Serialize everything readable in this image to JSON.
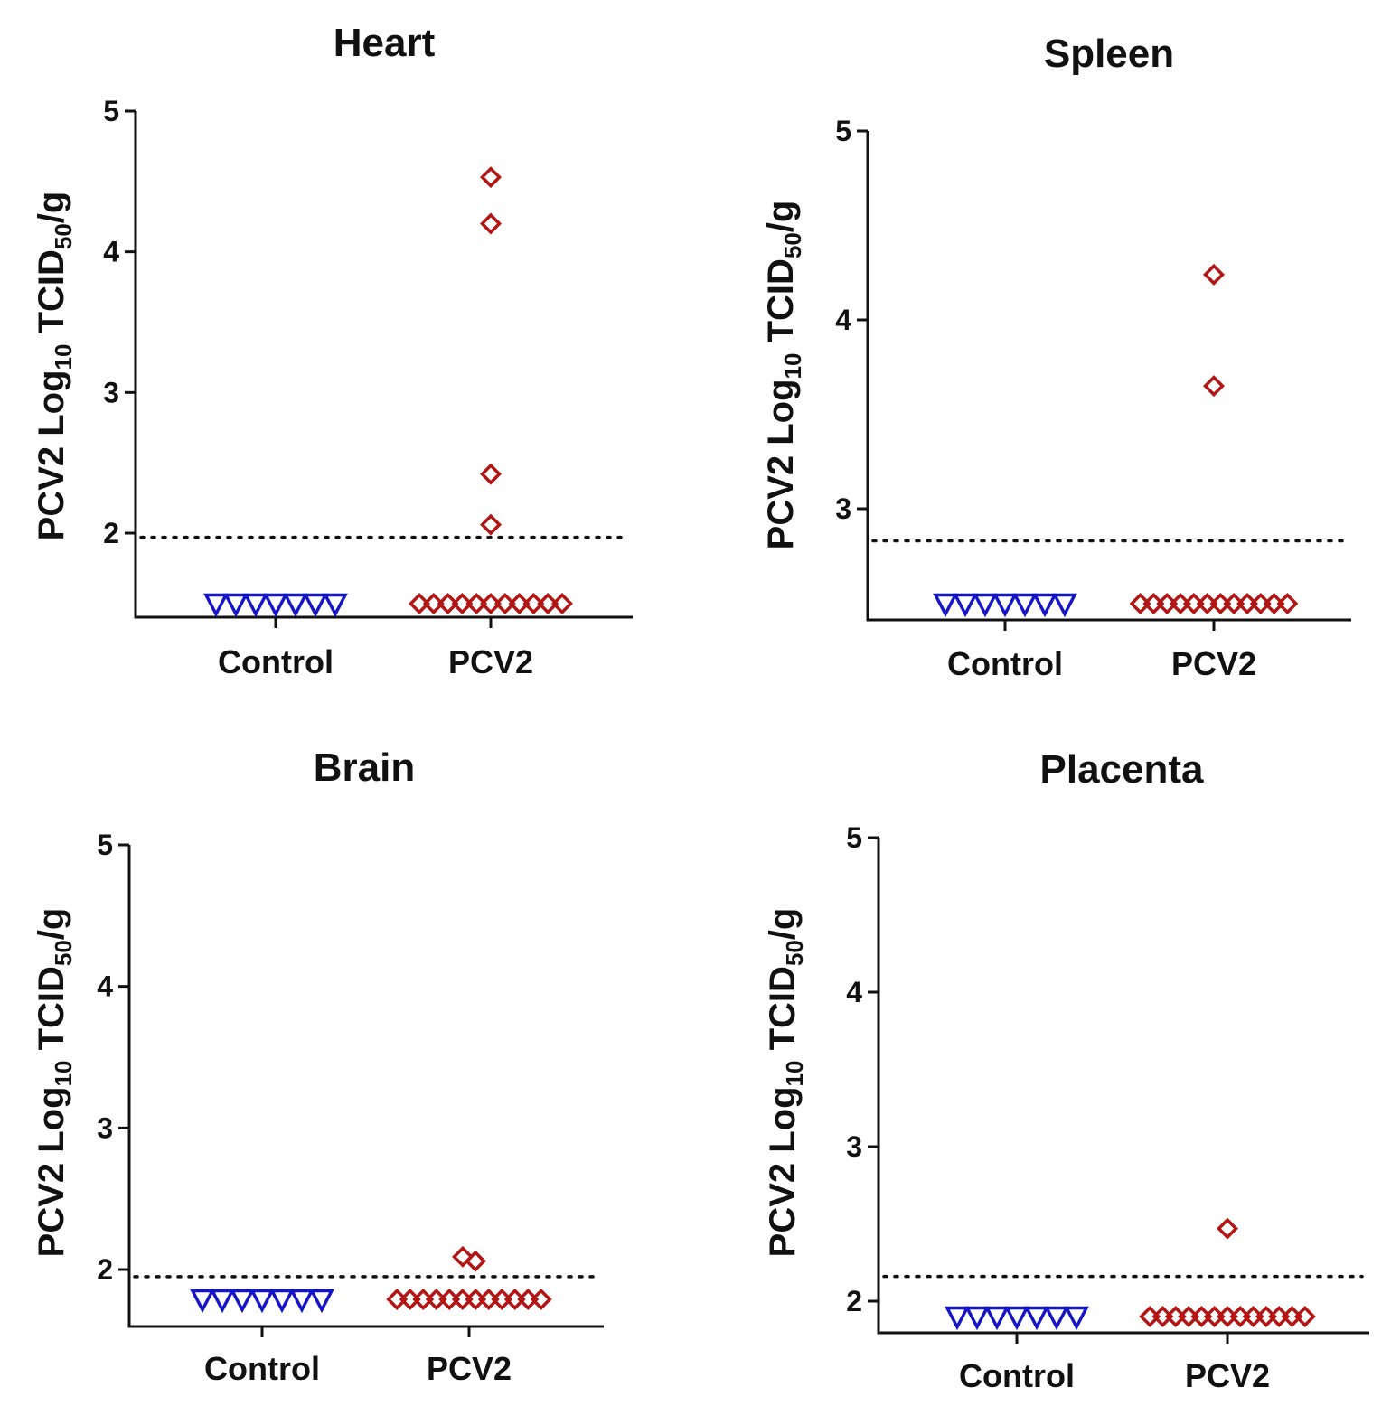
{
  "chart_data": [
    {
      "type": "scatter",
      "title": "Heart",
      "ylabel": {
        "prefix": "PCV2  Log",
        "sub1": "10",
        "mid": " TCID",
        "sub2": "50",
        "suffix": "/g"
      },
      "categories": [
        "Control",
        "PCV2"
      ],
      "ylim": [
        1.4,
        5
      ],
      "yticks": [
        "2",
        "3",
        "4",
        "5"
      ],
      "detection_limit": 1.97,
      "series": [
        {
          "name": "Control",
          "marker": "triangle-down",
          "color": "#1515c8",
          "values": [
            1.5,
            1.5,
            1.5,
            1.5,
            1.5,
            1.5,
            1.5
          ]
        },
        {
          "name": "PCV2",
          "marker": "diamond",
          "color": "#b31414",
          "values": [
            1.5,
            1.5,
            1.5,
            1.5,
            1.5,
            1.5,
            1.5,
            1.5,
            1.5,
            1.5,
            1.5,
            2.06,
            2.42,
            4.2,
            4.53
          ]
        }
      ]
    },
    {
      "type": "scatter",
      "title": "Spleen",
      "ylabel": {
        "prefix": "PCV2  Log",
        "sub1": "10",
        "mid": " TCID",
        "sub2": "50",
        "suffix": "/g"
      },
      "categories": [
        "Control",
        "PCV2"
      ],
      "ylim": [
        2.4,
        5
      ],
      "yticks": [
        "3",
        "4",
        "5"
      ],
      "detection_limit": 2.83,
      "series": [
        {
          "name": "Control",
          "marker": "triangle-down",
          "color": "#1515c8",
          "values": [
            2.5,
            2.5,
            2.5,
            2.5,
            2.5,
            2.5,
            2.5
          ]
        },
        {
          "name": "PCV2",
          "marker": "diamond",
          "color": "#b31414",
          "values": [
            2.5,
            2.5,
            2.5,
            2.5,
            2.5,
            2.5,
            2.5,
            2.5,
            2.5,
            2.5,
            2.5,
            2.5,
            3.65,
            4.24
          ]
        }
      ]
    },
    {
      "type": "scatter",
      "title": "Brain",
      "ylabel": {
        "prefix": "PCV2  Log",
        "sub1": "10",
        "mid": " TCID",
        "sub2": "50",
        "suffix": "/g"
      },
      "categories": [
        "Control",
        "PCV2"
      ],
      "ylim": [
        1.6,
        5
      ],
      "yticks": [
        "2",
        "3",
        "4",
        "5"
      ],
      "detection_limit": 1.95,
      "series": [
        {
          "name": "Control",
          "marker": "triangle-down",
          "color": "#1515c8",
          "values": [
            1.8,
            1.8,
            1.8,
            1.8,
            1.8,
            1.8,
            1.8
          ]
        },
        {
          "name": "PCV2",
          "marker": "diamond",
          "color": "#b31414",
          "values": [
            1.8,
            1.8,
            1.8,
            1.8,
            1.8,
            1.8,
            1.8,
            1.8,
            1.8,
            1.8,
            1.8,
            1.8,
            2.09,
            2.06
          ]
        }
      ]
    },
    {
      "type": "scatter",
      "title": "Placenta",
      "ylabel": {
        "prefix": "PCV2  Log",
        "sub1": "10",
        "mid": " TCID",
        "sub2": "50",
        "suffix": "/g"
      },
      "categories": [
        "Control",
        "PCV2"
      ],
      "ylim": [
        1.8,
        5
      ],
      "yticks": [
        "2",
        "3",
        "4",
        "5"
      ],
      "detection_limit": 2.16,
      "series": [
        {
          "name": "Control",
          "marker": "triangle-down",
          "color": "#1515c8",
          "values": [
            1.9,
            1.9,
            1.9,
            1.9,
            1.9,
            1.9,
            1.9
          ]
        },
        {
          "name": "PCV2",
          "marker": "diamond",
          "color": "#b31414",
          "values": [
            1.9,
            1.9,
            1.9,
            1.9,
            1.9,
            1.9,
            1.9,
            1.9,
            1.9,
            1.9,
            1.9,
            1.9,
            1.9,
            2.47
          ]
        }
      ]
    }
  ]
}
